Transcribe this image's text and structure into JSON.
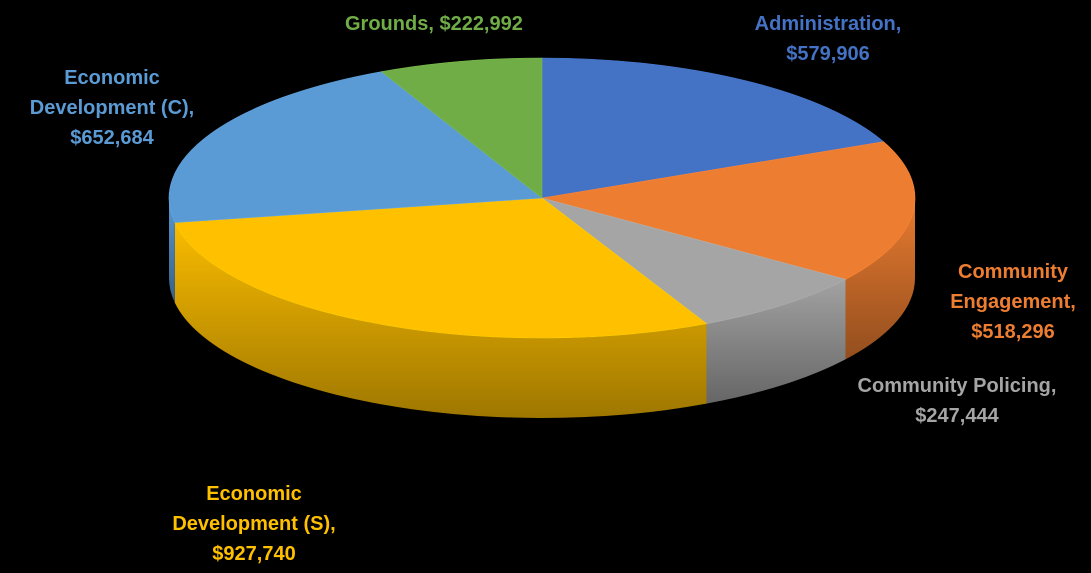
{
  "chart_data": {
    "type": "pie",
    "style": "3d",
    "title": "",
    "legend": "none",
    "slices": [
      {
        "name": "Administration",
        "value": 579906,
        "label_name": "Administration,",
        "label_value": "$579,906",
        "color": "#4472C4"
      },
      {
        "name": "Community Engagement",
        "value": 518296,
        "label_name": "Community Engagement,",
        "label_value": "$518,296",
        "color": "#ED7D31"
      },
      {
        "name": "Community Policing",
        "value": 247444,
        "label_name": "Community Policing,",
        "label_value": "$247,444",
        "color": "#A5A5A5"
      },
      {
        "name": "Economic Development (S)",
        "value": 927740,
        "label_name": "Economic Development (S),",
        "label_value": "$927,740",
        "color": "#FFC000"
      },
      {
        "name": "Economic Development (C)",
        "value": 652684,
        "label_name": "Economic Development (C),",
        "label_value": "$652,684",
        "color": "#5B9BD5"
      },
      {
        "name": "Grounds",
        "value": 222992,
        "label_name": "Grounds,",
        "label_value": "$222,992",
        "color": "#70AD47"
      }
    ]
  }
}
